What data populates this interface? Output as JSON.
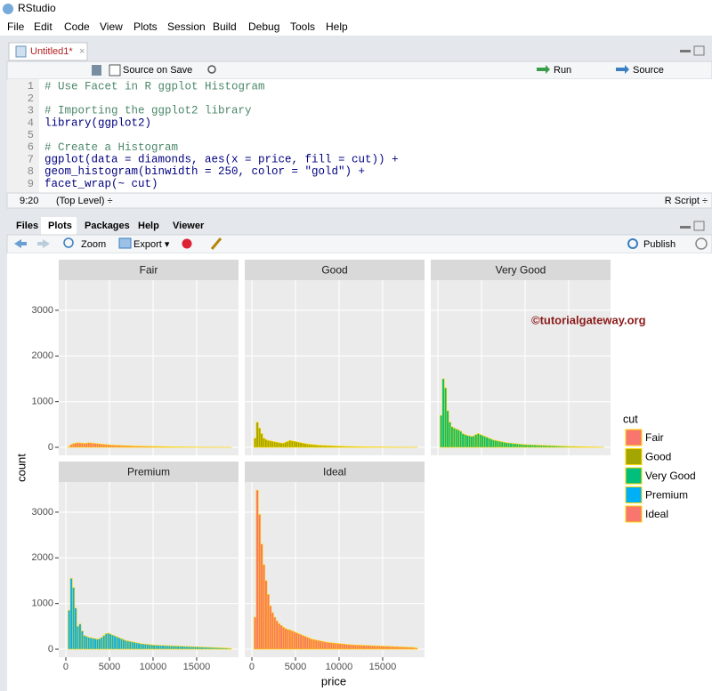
{
  "window": {
    "title": "RStudio"
  },
  "menu": [
    "File",
    "Edit",
    "Code",
    "View",
    "Plots",
    "Session",
    "Build",
    "Debug",
    "Tools",
    "Help"
  ],
  "editor": {
    "tab": "Untitled1*",
    "toolbar": {
      "source_on_save": "Source on Save",
      "run": "Run",
      "source": "Source"
    },
    "lines": [
      {
        "n": 1,
        "code": "# Use Facet in R ggplot Histogram"
      },
      {
        "n": 2
      },
      {
        "n": 3,
        "code": "# Importing the ggplot2 library"
      },
      {
        "n": 4,
        "code": "library(ggplot2)"
      },
      {
        "n": 5
      },
      {
        "n": 6,
        "code": "# Create a Histogram"
      },
      {
        "n": 7,
        "code": "ggplot(data = diamonds, aes(x = price, fill = cut)) +"
      },
      {
        "n": 8,
        "code": "  geom_histogram(binwidth = 250, color = \"gold\") +"
      },
      {
        "n": 9,
        "code": "  facet_wrap(~ cut)"
      }
    ],
    "status": {
      "position": "9:20",
      "scope": "(Top Level) ÷",
      "file_type": "R Script ÷"
    }
  },
  "viewer": {
    "tabs": [
      "Files",
      "Plots",
      "Packages",
      "Help",
      "Viewer"
    ],
    "toolbar": {
      "zoom": "Zoom",
      "export": "Export ▾",
      "publish": "Publish"
    }
  },
  "chart_data": {
    "type": "histogram",
    "xlabel": "price",
    "ylabel": "count",
    "legend_title": "cut",
    "legend_position": "right",
    "annotation": "©tutorialgateway.org",
    "outline": "gold",
    "facet_columns": 3,
    "grid": true,
    "xlim": [
      -816,
      19800
    ],
    "xticks": [
      0,
      5000,
      10000,
      15000
    ],
    "ylim": [
      -175,
      3660
    ],
    "yticks": [
      0,
      1000,
      2000,
      3000
    ],
    "bins": [
      250,
      500,
      750,
      1000,
      1250,
      1500,
      1750,
      2000,
      2250,
      2500,
      2750,
      3000,
      3250,
      3500,
      3750,
      4000,
      4250,
      4500,
      4750,
      5000,
      5250,
      5500,
      5750,
      6000,
      6250,
      6500,
      6750,
      7000,
      7250,
      7500,
      7750,
      8000,
      8250,
      8500,
      8750,
      9000,
      9250,
      9500,
      9750,
      10000,
      10250,
      10500,
      10750,
      11000,
      11250,
      11500,
      11750,
      12000,
      12250,
      12500,
      12750,
      13000,
      13250,
      13500,
      13750,
      14000,
      14250,
      14500,
      14750,
      15000,
      15250,
      15500,
      15750,
      16000,
      16250,
      16500,
      16750,
      17000,
      17250,
      17500,
      17750,
      18000,
      18250,
      18500,
      18750,
      19000
    ],
    "series": [
      {
        "name": "Fair",
        "color": "#F8766D",
        "values": [
          20,
          60,
          80,
          90,
          100,
          95,
          90,
          85,
          90,
          100,
          95,
          90,
          85,
          80,
          75,
          70,
          65,
          60,
          55,
          50,
          48,
          46,
          44,
          42,
          40,
          38,
          36,
          34,
          32,
          30,
          28,
          27,
          26,
          25,
          24,
          23,
          22,
          21,
          20,
          19,
          18,
          17,
          16,
          15,
          14,
          13,
          12,
          11,
          10,
          9,
          9,
          8,
          8,
          7,
          7,
          6,
          6,
          5,
          5,
          4,
          4,
          4,
          3,
          3,
          3,
          3,
          2,
          2,
          2,
          2,
          2,
          1,
          1,
          1,
          1
        ]
      },
      {
        "name": "Good",
        "color": "#A3A500",
        "values": [
          200,
          550,
          420,
          300,
          200,
          170,
          150,
          140,
          130,
          120,
          110,
          100,
          95,
          90,
          110,
          130,
          150,
          140,
          130,
          120,
          110,
          100,
          90,
          80,
          70,
          65,
          60,
          55,
          50,
          45,
          42,
          40,
          38,
          36,
          34,
          32,
          30,
          28,
          26,
          24,
          22,
          20,
          19,
          18,
          17,
          16,
          15,
          14,
          13,
          12,
          11,
          10,
          10,
          9,
          9,
          8,
          8,
          7,
          7,
          6,
          6,
          5,
          5,
          5,
          4,
          4,
          4,
          3,
          3,
          3,
          2,
          2,
          2,
          2,
          1
        ]
      },
      {
        "name": "Very Good",
        "color": "#00BF7D",
        "values": [
          700,
          1500,
          1300,
          800,
          550,
          450,
          420,
          400,
          380,
          350,
          300,
          280,
          260,
          250,
          240,
          250,
          280,
          300,
          280,
          260,
          240,
          220,
          200,
          180,
          160,
          150,
          140,
          130,
          120,
          110,
          100,
          95,
          90,
          85,
          80,
          75,
          70,
          65,
          60,
          58,
          56,
          54,
          52,
          50,
          48,
          46,
          44,
          42,
          40,
          38,
          36,
          34,
          32,
          30,
          28,
          26,
          24,
          22,
          20,
          18,
          17,
          16,
          15,
          14,
          13,
          12,
          11,
          10,
          9,
          8,
          7,
          6,
          5,
          4,
          3
        ]
      },
      {
        "name": "Premium",
        "color": "#00B0F6",
        "values": [
          850,
          1550,
          1350,
          900,
          500,
          550,
          400,
          300,
          280,
          260,
          250,
          240,
          230,
          220,
          230,
          260,
          300,
          340,
          350,
          330,
          310,
          290,
          270,
          250,
          230,
          210,
          190,
          180,
          170,
          160,
          150,
          140,
          130,
          120,
          115,
          110,
          105,
          100,
          95,
          90,
          88,
          86,
          84,
          82,
          80,
          78,
          76,
          74,
          72,
          70,
          68,
          66,
          64,
          62,
          60,
          58,
          56,
          54,
          52,
          50,
          48,
          46,
          44,
          42,
          40,
          38,
          36,
          34,
          32,
          30,
          28,
          26,
          24,
          20,
          15
        ]
      },
      {
        "name": "Ideal",
        "color": "#F8766D",
        "values": [
          700,
          3480,
          2950,
          2300,
          1850,
          1500,
          1200,
          950,
          800,
          700,
          620,
          560,
          520,
          480,
          450,
          430,
          420,
          400,
          380,
          360,
          340,
          320,
          300,
          280,
          260,
          240,
          220,
          210,
          200,
          190,
          180,
          170,
          160,
          150,
          145,
          140,
          135,
          130,
          125,
          120,
          115,
          110,
          105,
          100,
          98,
          95,
          92,
          90,
          88,
          86,
          84,
          82,
          80,
          78,
          76,
          74,
          72,
          70,
          68,
          66,
          64,
          62,
          60,
          58,
          56,
          54,
          52,
          50,
          48,
          46,
          44,
          42,
          40,
          35,
          25
        ]
      }
    ]
  }
}
